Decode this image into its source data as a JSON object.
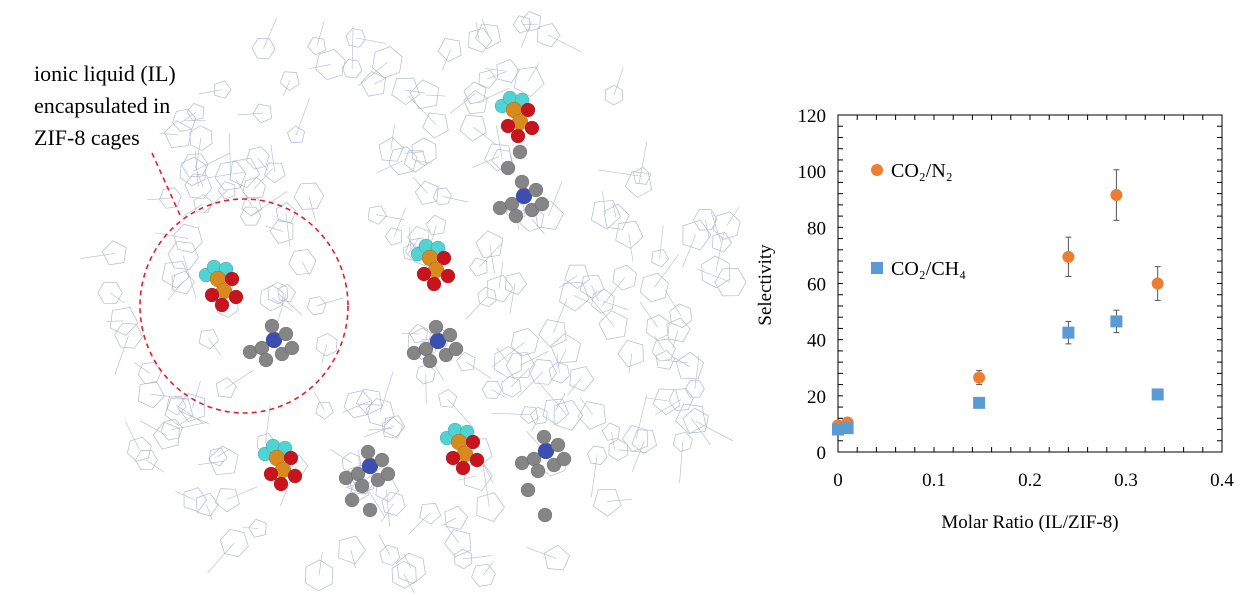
{
  "illustration": {
    "caption_lines": [
      "ionic liquid (IL)",
      "encapsulated in",
      "ZIF-8 cages"
    ]
  },
  "colors": {
    "n2_series": "#ED7D31",
    "ch4_series": "#5B9BD5",
    "framework": "#B4B9D2",
    "carbon": "#858585",
    "nitrogen": "#3A4FB0",
    "fluorine": "#4FD3D3",
    "oxygen": "#C8141E",
    "sulfur": "#D98A1E",
    "dashed_circle": "#E0202A"
  },
  "chart_data": {
    "type": "scatter",
    "xlabel": "Molar Ratio (IL/ZIF-8)",
    "ylabel": "Selectivity",
    "xlim": [
      0,
      0.4
    ],
    "ylim": [
      0,
      120
    ],
    "x_ticks": [
      "0",
      "0.1",
      "0.2",
      "0.3",
      "0.4"
    ],
    "y_ticks": [
      "0",
      "20",
      "40",
      "60",
      "80",
      "100",
      "120"
    ],
    "grid": false,
    "legend_position": "top-left",
    "series": [
      {
        "name": "CO₂/N₂",
        "marker": "circle",
        "color": "#ED7D31",
        "points": [
          {
            "x": 0.0,
            "y": 9.5,
            "err": 0
          },
          {
            "x": 0.01,
            "y": 10.5,
            "err": 0
          },
          {
            "x": 0.147,
            "y": 26.5,
            "err": 2.5
          },
          {
            "x": 0.24,
            "y": 69.5,
            "err": 7
          },
          {
            "x": 0.29,
            "y": 91.5,
            "err": 9
          },
          {
            "x": 0.333,
            "y": 60,
            "err": 6
          }
        ]
      },
      {
        "name": "CO₂/CH₄",
        "marker": "square",
        "color": "#5B9BD5",
        "points": [
          {
            "x": 0.0,
            "y": 8,
            "err": 0
          },
          {
            "x": 0.01,
            "y": 8.5,
            "err": 0
          },
          {
            "x": 0.147,
            "y": 17.5,
            "err": 0
          },
          {
            "x": 0.24,
            "y": 42.5,
            "err": 4
          },
          {
            "x": 0.29,
            "y": 46.5,
            "err": 4
          },
          {
            "x": 0.333,
            "y": 20.5,
            "err": 1.5
          }
        ]
      }
    ]
  }
}
